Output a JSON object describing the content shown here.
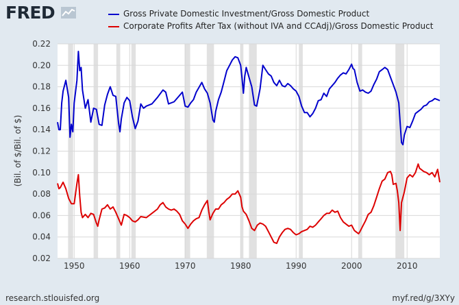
{
  "logo": {
    "text": "FRED",
    "icon": "line-chart-icon"
  },
  "footer": {
    "source": "research.stlouisfed.org",
    "link": "myf.red/g/3XYy"
  },
  "chart_data": {
    "type": "line",
    "title": "",
    "xlabel": "",
    "ylabel": "(Bil. of $/Bil. of $)",
    "xlim": [
      1947,
      2015.9
    ],
    "ylim": [
      0.02,
      0.22
    ],
    "yticks": [
      0.02,
      0.04,
      0.06,
      0.08,
      0.1,
      0.12,
      0.14,
      0.16,
      0.18,
      0.2,
      0.22
    ],
    "ytick_labels": [
      "0.02",
      "0.04",
      "0.06",
      "0.08",
      "0.10",
      "0.12",
      "0.14",
      "0.16",
      "0.18",
      "0.20",
      "0.22"
    ],
    "xticks": [
      1950,
      1960,
      1970,
      1980,
      1990,
      2000,
      2010
    ],
    "xtick_labels": [
      "1950",
      "1960",
      "1970",
      "1980",
      "1990",
      "2000",
      "2010"
    ],
    "grid": true,
    "legend_position": "top",
    "recessions": [
      [
        1948.9,
        1949.8
      ],
      [
        1953.5,
        1954.3
      ],
      [
        1957.6,
        1958.3
      ],
      [
        1960.3,
        1961.1
      ],
      [
        1969.9,
        1970.9
      ],
      [
        1973.9,
        1975.2
      ],
      [
        1980.0,
        1980.5
      ],
      [
        1981.5,
        1982.9
      ],
      [
        1990.5,
        1991.2
      ],
      [
        2001.2,
        2001.9
      ],
      [
        2007.9,
        2009.5
      ]
    ],
    "series": [
      {
        "name": "Gross Private Domestic Investment/Gross Domestic Product",
        "color": "#0000cc",
        "x": [
          1947.0,
          1947.25,
          1947.5,
          1947.75,
          1948.0,
          1948.5,
          1949.0,
          1949.25,
          1949.5,
          1949.75,
          1950.0,
          1950.5,
          1950.75,
          1951.0,
          1951.25,
          1951.5,
          1952.0,
          1952.5,
          1953.0,
          1953.5,
          1954.0,
          1954.5,
          1955.0,
          1955.5,
          1956.0,
          1956.5,
          1957.0,
          1957.5,
          1958.0,
          1958.25,
          1958.5,
          1959.0,
          1959.5,
          1960.0,
          1960.5,
          1961.0,
          1961.5,
          1962.0,
          1962.5,
          1963.0,
          1964.0,
          1965.0,
          1966.0,
          1966.5,
          1967.0,
          1968.0,
          1969.0,
          1969.5,
          1970.0,
          1970.5,
          1971.0,
          1971.5,
          1972.0,
          1973.0,
          1973.5,
          1974.0,
          1974.5,
          1975.0,
          1975.25,
          1975.5,
          1976.0,
          1976.5,
          1977.0,
          1977.5,
          1978.0,
          1978.5,
          1979.0,
          1979.5,
          1980.0,
          1980.25,
          1980.5,
          1980.75,
          1981.0,
          1981.5,
          1982.0,
          1982.5,
          1982.9,
          1983.5,
          1984.0,
          1984.5,
          1985.0,
          1985.5,
          1986.0,
          1986.5,
          1987.0,
          1987.5,
          1988.0,
          1988.5,
          1989.0,
          1989.5,
          1990.0,
          1990.5,
          1991.0,
          1991.5,
          1992.0,
          1992.5,
          1993.0,
          1993.5,
          1994.0,
          1994.5,
          1995.0,
          1995.5,
          1996.0,
          1997.0,
          1997.5,
          1998.0,
          1998.5,
          1999.0,
          1999.5,
          2000.0,
          2000.25,
          2000.5,
          2001.0,
          2001.5,
          2002.0,
          2002.5,
          2003.0,
          2003.5,
          2004.0,
          2004.5,
          2005.0,
          2005.5,
          2006.0,
          2006.5,
          2007.0,
          2007.5,
          2008.0,
          2008.5,
          2009.0,
          2009.25,
          2009.5,
          2010.0,
          2010.5,
          2011.0,
          2011.5,
          2012.0,
          2012.5,
          2013.0,
          2013.5,
          2014.0,
          2014.5,
          2015.0,
          2015.5,
          2015.9
        ],
        "y": [
          0.147,
          0.14,
          0.14,
          0.165,
          0.176,
          0.186,
          0.17,
          0.133,
          0.145,
          0.138,
          0.165,
          0.186,
          0.213,
          0.195,
          0.198,
          0.177,
          0.16,
          0.168,
          0.147,
          0.16,
          0.159,
          0.145,
          0.144,
          0.163,
          0.173,
          0.18,
          0.172,
          0.171,
          0.146,
          0.138,
          0.15,
          0.165,
          0.17,
          0.167,
          0.152,
          0.141,
          0.148,
          0.164,
          0.16,
          0.162,
          0.164,
          0.17,
          0.177,
          0.175,
          0.164,
          0.166,
          0.172,
          0.175,
          0.162,
          0.161,
          0.165,
          0.168,
          0.175,
          0.184,
          0.178,
          0.174,
          0.165,
          0.149,
          0.147,
          0.157,
          0.168,
          0.175,
          0.185,
          0.195,
          0.2,
          0.205,
          0.208,
          0.207,
          0.2,
          0.188,
          0.174,
          0.19,
          0.198,
          0.189,
          0.18,
          0.163,
          0.162,
          0.178,
          0.2,
          0.196,
          0.192,
          0.19,
          0.184,
          0.181,
          0.186,
          0.181,
          0.18,
          0.183,
          0.181,
          0.178,
          0.176,
          0.171,
          0.162,
          0.156,
          0.156,
          0.152,
          0.155,
          0.16,
          0.167,
          0.168,
          0.174,
          0.171,
          0.178,
          0.184,
          0.188,
          0.191,
          0.193,
          0.192,
          0.196,
          0.201,
          0.197,
          0.196,
          0.184,
          0.176,
          0.177,
          0.175,
          0.174,
          0.176,
          0.182,
          0.187,
          0.194,
          0.196,
          0.198,
          0.196,
          0.189,
          0.182,
          0.175,
          0.165,
          0.128,
          0.126,
          0.135,
          0.143,
          0.142,
          0.148,
          0.155,
          0.157,
          0.159,
          0.162,
          0.163,
          0.166,
          0.167,
          0.169,
          0.168,
          0.167
        ]
      },
      {
        "name": "Corporate Profits After Tax (without IVA and CCAdj)/Gross Domestic Product",
        "color": "#dd0000",
        "x": [
          1947.0,
          1947.25,
          1947.5,
          1948.0,
          1948.5,
          1949.0,
          1949.5,
          1950.0,
          1950.5,
          1950.75,
          1951.0,
          1951.25,
          1951.5,
          1952.0,
          1952.5,
          1953.0,
          1953.5,
          1954.0,
          1954.25,
          1954.5,
          1955.0,
          1955.5,
          1956.0,
          1956.5,
          1957.0,
          1957.5,
          1958.0,
          1958.5,
          1959.0,
          1959.5,
          1960.0,
          1960.5,
          1961.0,
          1961.5,
          1962.0,
          1963.0,
          1964.0,
          1965.0,
          1965.5,
          1966.0,
          1966.5,
          1967.0,
          1967.5,
          1968.0,
          1968.5,
          1969.0,
          1969.5,
          1970.0,
          1970.5,
          1971.0,
          1971.5,
          1972.0,
          1972.5,
          1973.0,
          1973.5,
          1974.0,
          1974.25,
          1974.5,
          1975.0,
          1975.5,
          1976.0,
          1976.5,
          1977.0,
          1977.5,
          1978.0,
          1978.5,
          1979.0,
          1979.5,
          1980.0,
          1980.25,
          1980.5,
          1981.0,
          1981.5,
          1982.0,
          1982.5,
          1983.0,
          1983.5,
          1984.0,
          1984.5,
          1985.0,
          1985.5,
          1986.0,
          1986.5,
          1987.0,
          1987.5,
          1988.0,
          1988.5,
          1989.0,
          1989.5,
          1990.0,
          1990.5,
          1991.0,
          1991.5,
          1992.0,
          1992.5,
          1993.0,
          1993.5,
          1994.0,
          1994.5,
          1995.0,
          1995.5,
          1996.0,
          1996.5,
          1997.0,
          1997.5,
          1998.0,
          1998.5,
          1999.0,
          1999.5,
          2000.0,
          2000.5,
          2001.0,
          2001.25,
          2001.5,
          2002.0,
          2002.5,
          2003.0,
          2003.5,
          2004.0,
          2004.5,
          2005.0,
          2005.5,
          2006.0,
          2006.5,
          2007.0,
          2007.25,
          2007.5,
          2008.0,
          2008.25,
          2008.5,
          2008.75,
          2009.0,
          2009.5,
          2010.0,
          2010.5,
          2011.0,
          2011.5,
          2012.0,
          2012.25,
          2012.5,
          2013.0,
          2013.5,
          2014.0,
          2014.5,
          2015.0,
          2015.5,
          2015.9
        ],
        "y": [
          0.09,
          0.085,
          0.086,
          0.091,
          0.085,
          0.076,
          0.071,
          0.071,
          0.09,
          0.098,
          0.078,
          0.063,
          0.058,
          0.061,
          0.058,
          0.062,
          0.061,
          0.053,
          0.05,
          0.056,
          0.066,
          0.067,
          0.07,
          0.066,
          0.068,
          0.063,
          0.057,
          0.051,
          0.061,
          0.06,
          0.058,
          0.055,
          0.054,
          0.056,
          0.059,
          0.058,
          0.062,
          0.066,
          0.07,
          0.072,
          0.068,
          0.066,
          0.065,
          0.066,
          0.064,
          0.061,
          0.055,
          0.052,
          0.048,
          0.052,
          0.055,
          0.057,
          0.058,
          0.065,
          0.07,
          0.074,
          0.064,
          0.056,
          0.062,
          0.066,
          0.066,
          0.07,
          0.072,
          0.075,
          0.077,
          0.08,
          0.08,
          0.083,
          0.077,
          0.068,
          0.064,
          0.061,
          0.055,
          0.048,
          0.046,
          0.051,
          0.053,
          0.052,
          0.05,
          0.045,
          0.04,
          0.035,
          0.034,
          0.04,
          0.044,
          0.047,
          0.048,
          0.047,
          0.044,
          0.042,
          0.043,
          0.045,
          0.046,
          0.047,
          0.05,
          0.049,
          0.051,
          0.054,
          0.057,
          0.06,
          0.062,
          0.062,
          0.065,
          0.063,
          0.064,
          0.058,
          0.054,
          0.052,
          0.05,
          0.051,
          0.046,
          0.044,
          0.043,
          0.045,
          0.05,
          0.055,
          0.061,
          0.063,
          0.069,
          0.077,
          0.085,
          0.092,
          0.094,
          0.1,
          0.101,
          0.098,
          0.089,
          0.09,
          0.083,
          0.072,
          0.046,
          0.072,
          0.082,
          0.095,
          0.098,
          0.096,
          0.1,
          0.108,
          0.104,
          0.103,
          0.101,
          0.1,
          0.098,
          0.1,
          0.096,
          0.103,
          0.091
        ]
      }
    ]
  }
}
